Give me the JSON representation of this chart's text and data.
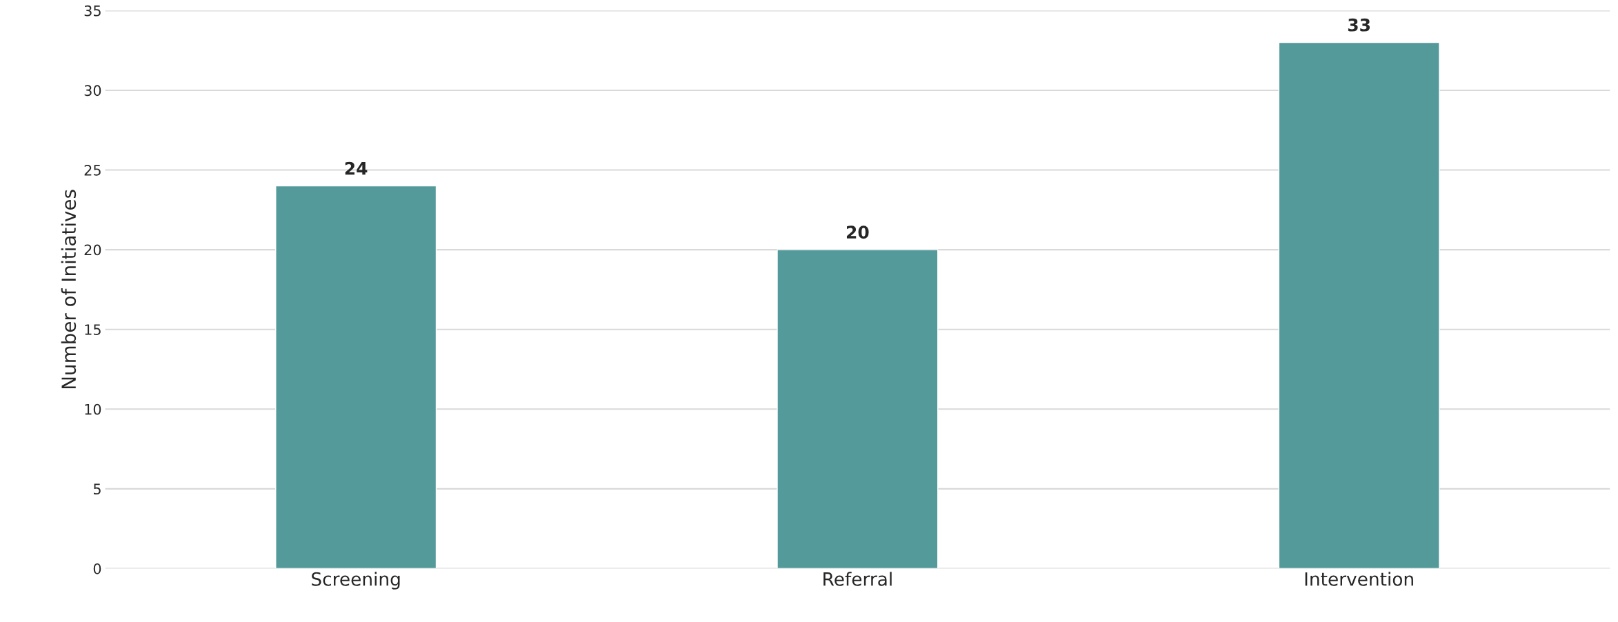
{
  "chart_data": {
    "type": "bar",
    "ylabel": "Number of Initiatives",
    "categories": [
      "Screening",
      "Referral",
      "Intervention"
    ],
    "values": [
      24,
      20,
      33
    ],
    "color": "#549a9a",
    "ylim": [
      0,
      35
    ],
    "yticks": [
      0,
      5,
      10,
      15,
      20,
      25,
      30,
      35
    ],
    "grid": "y",
    "data_labels": true
  }
}
